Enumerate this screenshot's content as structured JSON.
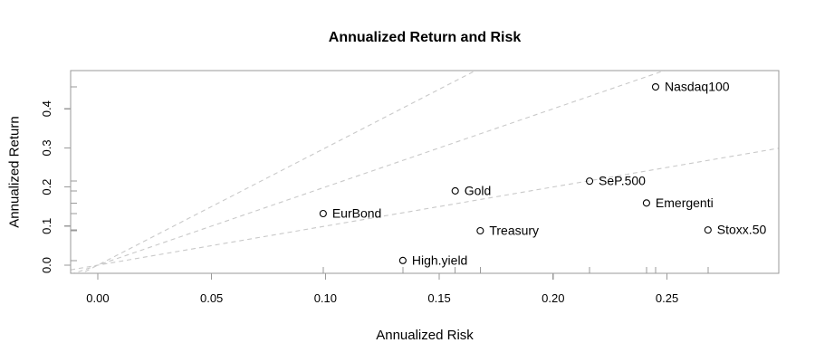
{
  "colors": {
    "background": "#ffffff",
    "text": "#000000",
    "axis": "#9a9a9a",
    "reference_line": "#c9c9c9",
    "point_stroke": "#000000"
  },
  "chart_data": {
    "type": "scatter",
    "title": "Annualized Return and Risk",
    "xlabel": "Annualized Risk",
    "ylabel": "Annualized Return",
    "xlim": [
      -0.0119,
      0.2991
    ],
    "ylim": [
      -0.0208,
      0.4977
    ],
    "x_ticks": [
      0.0,
      0.05,
      0.1,
      0.15,
      0.2,
      0.25
    ],
    "x_tick_labels": [
      "0.00",
      "0.05",
      "0.10",
      "0.15",
      "0.20",
      "0.25"
    ],
    "y_ticks": [
      0.0,
      0.1,
      0.2,
      0.3,
      0.4
    ],
    "y_tick_labels": [
      "0.0",
      "0.1",
      "0.2",
      "0.3",
      "0.4"
    ],
    "grid": false,
    "legend": null,
    "rug_axes": [
      "bottom",
      "left"
    ],
    "points": [
      {
        "label": "Nasdaq100",
        "x": 0.245,
        "y": 0.456
      },
      {
        "label": "SeP.500",
        "x": 0.216,
        "y": 0.215
      },
      {
        "label": "Emergenti",
        "x": 0.241,
        "y": 0.159
      },
      {
        "label": "Stoxx.50",
        "x": 0.268,
        "y": 0.09
      },
      {
        "label": "Gold",
        "x": 0.157,
        "y": 0.19
      },
      {
        "label": "Treasury",
        "x": 0.168,
        "y": 0.088
      },
      {
        "label": "EurBond",
        "x": 0.099,
        "y": 0.132
      },
      {
        "label": "High.yield",
        "x": 0.134,
        "y": 0.012
      }
    ],
    "reference_lines": [
      {
        "name": "slope-1",
        "slope": 1,
        "intercept": 0,
        "style": "dashed"
      },
      {
        "name": "slope-2",
        "slope": 2,
        "intercept": 0,
        "style": "dashed"
      },
      {
        "name": "slope-3",
        "slope": 3,
        "intercept": 0,
        "style": "dashed"
      }
    ]
  }
}
